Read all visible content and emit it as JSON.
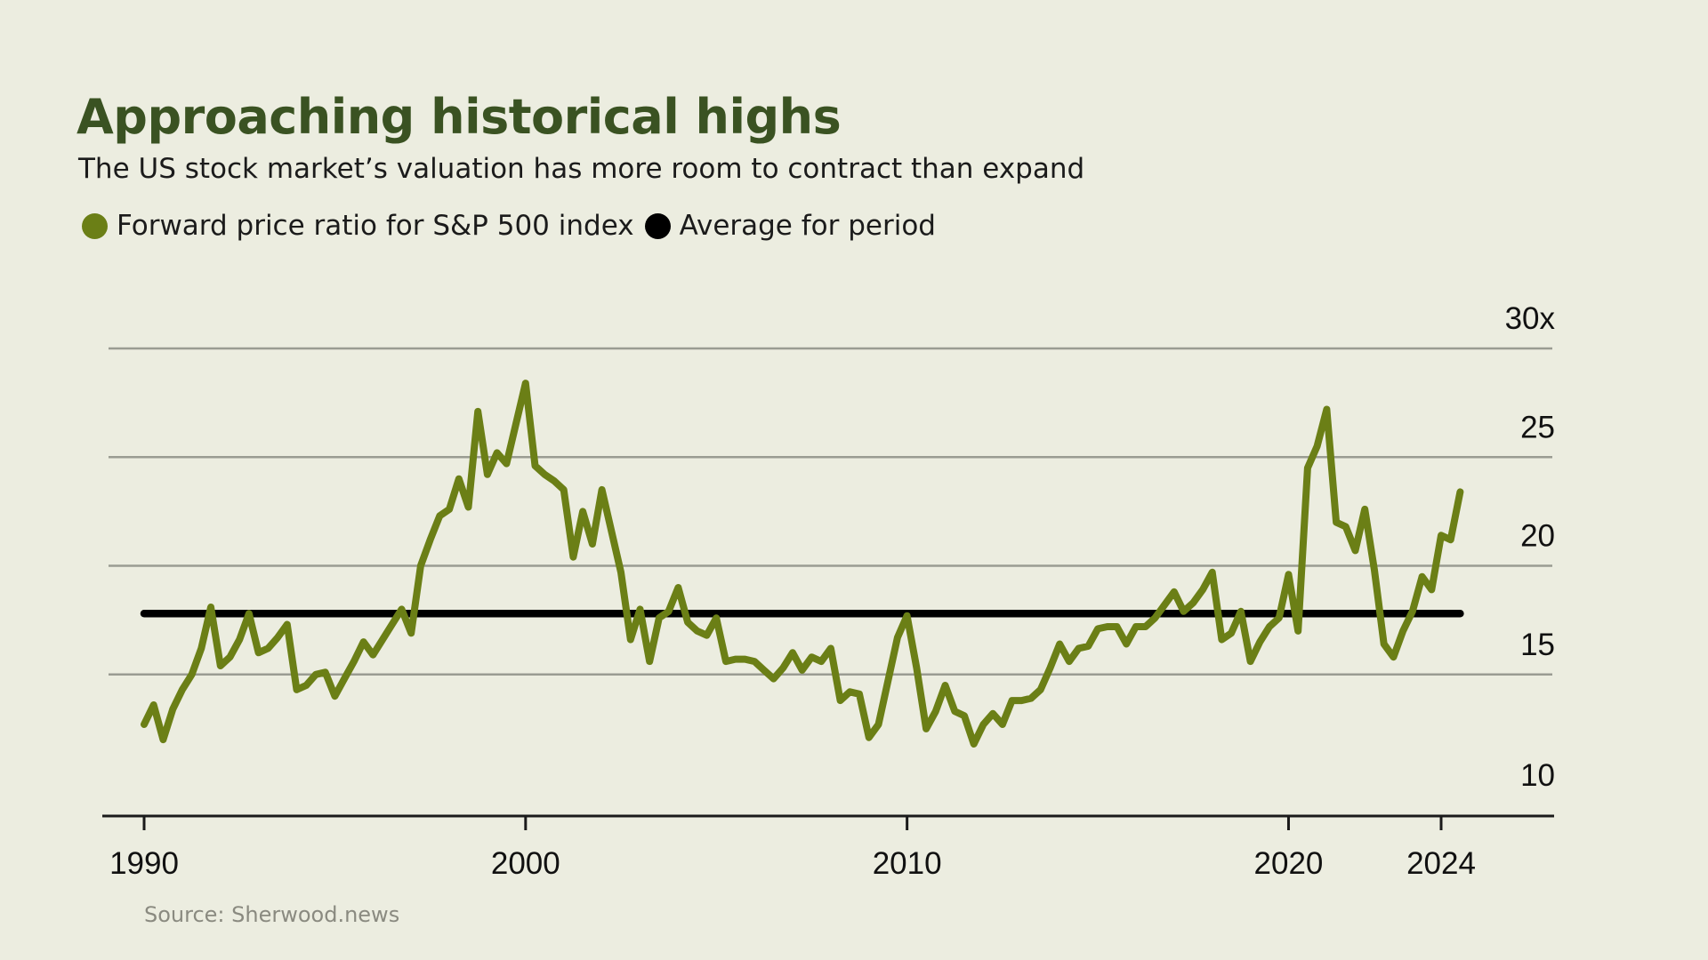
{
  "title": "Approaching historical highs",
  "subtitle": "The US stock market’s valuation has more room to contract than expand",
  "legend": [
    {
      "label": "Forward price ratio for S&P 500 index",
      "color": "#6b7f16"
    },
    {
      "label": "Average for period",
      "color": "#000000"
    }
  ],
  "source": "Source: Sherwood.news",
  "chart_data": {
    "type": "line",
    "title": "Approaching historical highs",
    "subtitle": "The US stock market’s valuation has more room to contract than expand",
    "xlim": [
      1990,
      2024
    ],
    "ylim": [
      10,
      30
    ],
    "y_ticks": [
      10,
      15,
      20,
      25,
      30
    ],
    "y_tick_labels": [
      "10",
      "15",
      "20",
      "25",
      "30x"
    ],
    "x_ticks": [
      1990,
      2000,
      2010,
      2020,
      2024
    ],
    "x_tick_labels": [
      "1990",
      "2000",
      "2010",
      "2020",
      "2024"
    ],
    "grid": true,
    "legend_position": "top-left",
    "series": [
      {
        "name": "Forward price ratio for S&P 500 index",
        "color": "#6b7f16",
        "points": [
          [
            1990.0,
            12.7
          ],
          [
            1990.25,
            13.6
          ],
          [
            1990.5,
            12.0
          ],
          [
            1990.75,
            13.4
          ],
          [
            1991.0,
            14.3
          ],
          [
            1991.25,
            15.0
          ],
          [
            1991.5,
            16.2
          ],
          [
            1991.75,
            18.1
          ],
          [
            1992.0,
            15.4
          ],
          [
            1992.25,
            15.8
          ],
          [
            1992.5,
            16.6
          ],
          [
            1992.75,
            17.8
          ],
          [
            1993.0,
            16.0
          ],
          [
            1993.25,
            16.2
          ],
          [
            1993.5,
            16.7
          ],
          [
            1993.75,
            17.3
          ],
          [
            1994.0,
            14.3
          ],
          [
            1994.25,
            14.5
          ],
          [
            1994.5,
            15.0
          ],
          [
            1994.75,
            15.1
          ],
          [
            1995.0,
            14.0
          ],
          [
            1995.25,
            14.8
          ],
          [
            1995.5,
            15.6
          ],
          [
            1995.75,
            16.5
          ],
          [
            1996.0,
            15.9
          ],
          [
            1996.25,
            16.6
          ],
          [
            1996.5,
            17.3
          ],
          [
            1996.75,
            18.0
          ],
          [
            1997.0,
            16.9
          ],
          [
            1997.25,
            20.0
          ],
          [
            1997.5,
            21.2
          ],
          [
            1997.75,
            22.3
          ],
          [
            1998.0,
            22.6
          ],
          [
            1998.25,
            24.0
          ],
          [
            1998.5,
            22.7
          ],
          [
            1998.75,
            27.1
          ],
          [
            1999.0,
            24.2
          ],
          [
            1999.25,
            25.2
          ],
          [
            1999.5,
            24.7
          ],
          [
            2000.0,
            28.4
          ],
          [
            2000.25,
            24.6
          ],
          [
            2000.5,
            24.2
          ],
          [
            2000.75,
            23.9
          ],
          [
            2001.0,
            23.5
          ],
          [
            2001.25,
            20.4
          ],
          [
            2001.5,
            22.5
          ],
          [
            2001.75,
            21.0
          ],
          [
            2002.0,
            23.5
          ],
          [
            2002.5,
            19.7
          ],
          [
            2002.75,
            16.6
          ],
          [
            2003.0,
            18.0
          ],
          [
            2003.25,
            15.6
          ],
          [
            2003.5,
            17.6
          ],
          [
            2003.75,
            17.9
          ],
          [
            2004.0,
            19.0
          ],
          [
            2004.25,
            17.4
          ],
          [
            2004.5,
            17.0
          ],
          [
            2004.75,
            16.8
          ],
          [
            2005.0,
            17.6
          ],
          [
            2005.25,
            15.6
          ],
          [
            2005.5,
            15.7
          ],
          [
            2005.75,
            15.7
          ],
          [
            2006.0,
            15.6
          ],
          [
            2006.25,
            15.2
          ],
          [
            2006.5,
            14.8
          ],
          [
            2006.75,
            15.3
          ],
          [
            2007.0,
            16.0
          ],
          [
            2007.25,
            15.2
          ],
          [
            2007.5,
            15.8
          ],
          [
            2007.75,
            15.6
          ],
          [
            2008.0,
            16.2
          ],
          [
            2008.25,
            13.8
          ],
          [
            2008.5,
            14.2
          ],
          [
            2008.75,
            14.1
          ],
          [
            2009.0,
            12.1
          ],
          [
            2009.25,
            12.7
          ],
          [
            2009.5,
            14.7
          ],
          [
            2009.75,
            16.7
          ],
          [
            2010.0,
            17.7
          ],
          [
            2010.25,
            15.3
          ],
          [
            2010.5,
            12.5
          ],
          [
            2010.75,
            13.3
          ],
          [
            2011.0,
            14.5
          ],
          [
            2011.25,
            13.3
          ],
          [
            2011.5,
            13.1
          ],
          [
            2011.75,
            11.8
          ],
          [
            2012.0,
            12.7
          ],
          [
            2012.25,
            13.2
          ],
          [
            2012.5,
            12.7
          ],
          [
            2012.75,
            13.8
          ],
          [
            2013.0,
            13.8
          ],
          [
            2013.25,
            13.9
          ],
          [
            2013.5,
            14.3
          ],
          [
            2013.75,
            15.3
          ],
          [
            2014.0,
            16.4
          ],
          [
            2014.25,
            15.6
          ],
          [
            2014.5,
            16.2
          ],
          [
            2014.75,
            16.3
          ],
          [
            2015.0,
            17.1
          ],
          [
            2015.25,
            17.2
          ],
          [
            2015.5,
            17.2
          ],
          [
            2015.75,
            16.4
          ],
          [
            2016.0,
            17.2
          ],
          [
            2016.25,
            17.2
          ],
          [
            2016.5,
            17.6
          ],
          [
            2016.75,
            18.2
          ],
          [
            2017.0,
            18.8
          ],
          [
            2017.25,
            17.9
          ],
          [
            2017.5,
            18.3
          ],
          [
            2017.75,
            18.9
          ],
          [
            2018.0,
            19.7
          ],
          [
            2018.25,
            16.6
          ],
          [
            2018.5,
            16.9
          ],
          [
            2018.75,
            17.9
          ],
          [
            2019.0,
            15.6
          ],
          [
            2019.25,
            16.5
          ],
          [
            2019.5,
            17.2
          ],
          [
            2019.75,
            17.6
          ],
          [
            2020.0,
            19.6
          ],
          [
            2020.25,
            17.0
          ],
          [
            2020.5,
            24.5
          ],
          [
            2020.75,
            25.5
          ],
          [
            2021.0,
            27.2
          ],
          [
            2021.25,
            22.0
          ],
          [
            2021.5,
            21.8
          ],
          [
            2021.75,
            20.7
          ],
          [
            2022.0,
            22.6
          ],
          [
            2022.25,
            19.8
          ],
          [
            2022.5,
            16.4
          ],
          [
            2022.75,
            15.8
          ],
          [
            2023.0,
            17.0
          ],
          [
            2023.25,
            17.9
          ],
          [
            2023.5,
            19.5
          ],
          [
            2023.75,
            18.9
          ],
          [
            2024.0,
            21.4
          ],
          [
            2024.25,
            21.2
          ],
          [
            2024.5,
            23.4
          ]
        ]
      },
      {
        "name": "Average for period",
        "color": "#000000",
        "points": [
          [
            1990.0,
            17.8
          ],
          [
            2024.5,
            17.8
          ]
        ]
      }
    ]
  }
}
